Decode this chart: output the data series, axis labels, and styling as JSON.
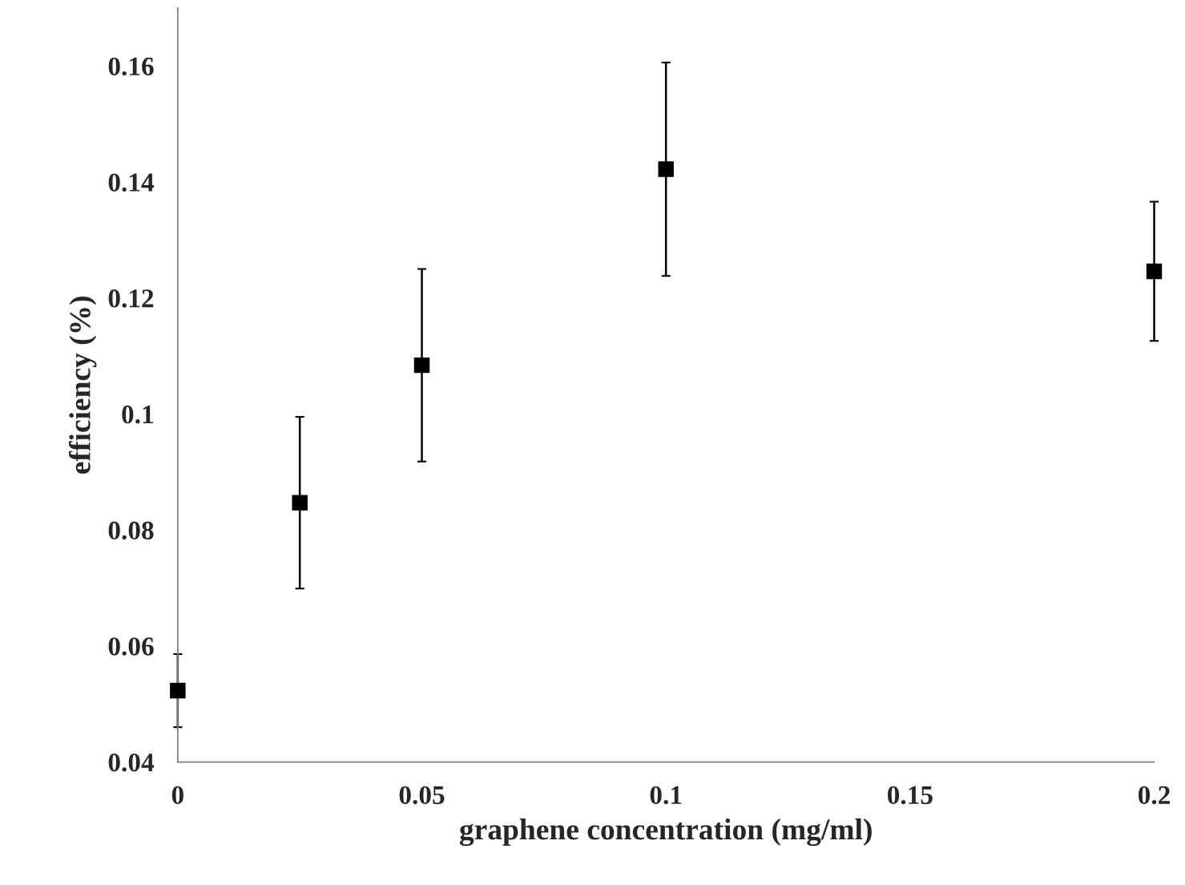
{
  "chart_data": {
    "type": "scatter",
    "xlabel": "graphene concentration (mg/ml)",
    "ylabel": "efficiency (%)",
    "x": [
      0,
      0.025,
      0.05,
      0.1,
      0.2
    ],
    "series": [
      {
        "color": "#000000",
        "values": [
          0.0523,
          0.0847,
          0.1084,
          0.1422,
          0.1246
        ],
        "errors": [
          0.0063,
          0.0148,
          0.0166,
          0.0184,
          0.012
        ]
      }
    ],
    "marker": "square",
    "grid": false,
    "xlim": [
      0,
      0.2
    ],
    "xticks": [
      0,
      0.05,
      0.1,
      0.15,
      0.2
    ],
    "ylim": [
      0.04,
      0.17
    ],
    "yticks": [
      0.04,
      0.06,
      0.08,
      0.1,
      0.12,
      0.14,
      0.16
    ]
  }
}
